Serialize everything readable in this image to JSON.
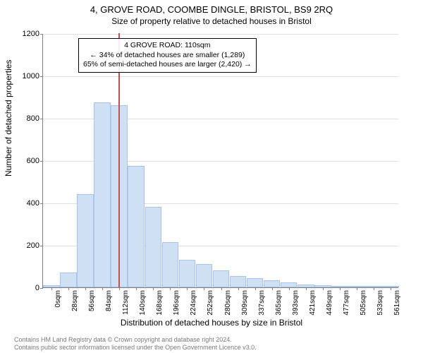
{
  "chart": {
    "type": "histogram",
    "title": "4, GROVE ROAD, COOMBE DINGLE, BRISTOL, BS9 2RQ",
    "subtitle": "Size of property relative to detached houses in Bristol",
    "ylabel": "Number of detached properties",
    "xlabel": "Distribution of detached houses by size in Bristol",
    "background_color": "#ffffff",
    "bar_fill": "#cfe0f5",
    "bar_stroke": "#a8c4e8",
    "marker_color": "#c0504d",
    "grid_color": "#808080",
    "ylim": [
      0,
      1200
    ],
    "ytick_step": 200,
    "yticks": [
      0,
      200,
      400,
      600,
      800,
      1000,
      1200
    ],
    "xticks": [
      "0sqm",
      "28sqm",
      "56sqm",
      "84sqm",
      "112sqm",
      "140sqm",
      "168sqm",
      "196sqm",
      "224sqm",
      "252sqm",
      "280sqm",
      "309sqm",
      "337sqm",
      "365sqm",
      "393sqm",
      "421sqm",
      "449sqm",
      "477sqm",
      "505sqm",
      "533sqm",
      "561sqm"
    ],
    "bar_values": [
      10,
      70,
      440,
      875,
      860,
      575,
      380,
      215,
      130,
      110,
      80,
      55,
      45,
      35,
      25,
      15,
      10,
      8,
      5,
      4,
      3
    ],
    "marker_index": 3.93,
    "annotation": {
      "line1": "4 GROVE ROAD: 110sqm",
      "line2": "← 34% of detached houses are smaller (1,289)",
      "line3": "65% of semi-detached houses are larger (2,420) →"
    },
    "footer_line1": "Contains HM Land Registry data © Crown copyright and database right 2024.",
    "footer_line2": "Contains public sector information licensed under the Open Government Licence v3.0.",
    "title_fontsize": 13,
    "subtitle_fontsize": 12,
    "label_fontsize": 12,
    "tick_fontsize": 11,
    "xtick_fontsize": 10,
    "footer_fontsize": 9
  }
}
